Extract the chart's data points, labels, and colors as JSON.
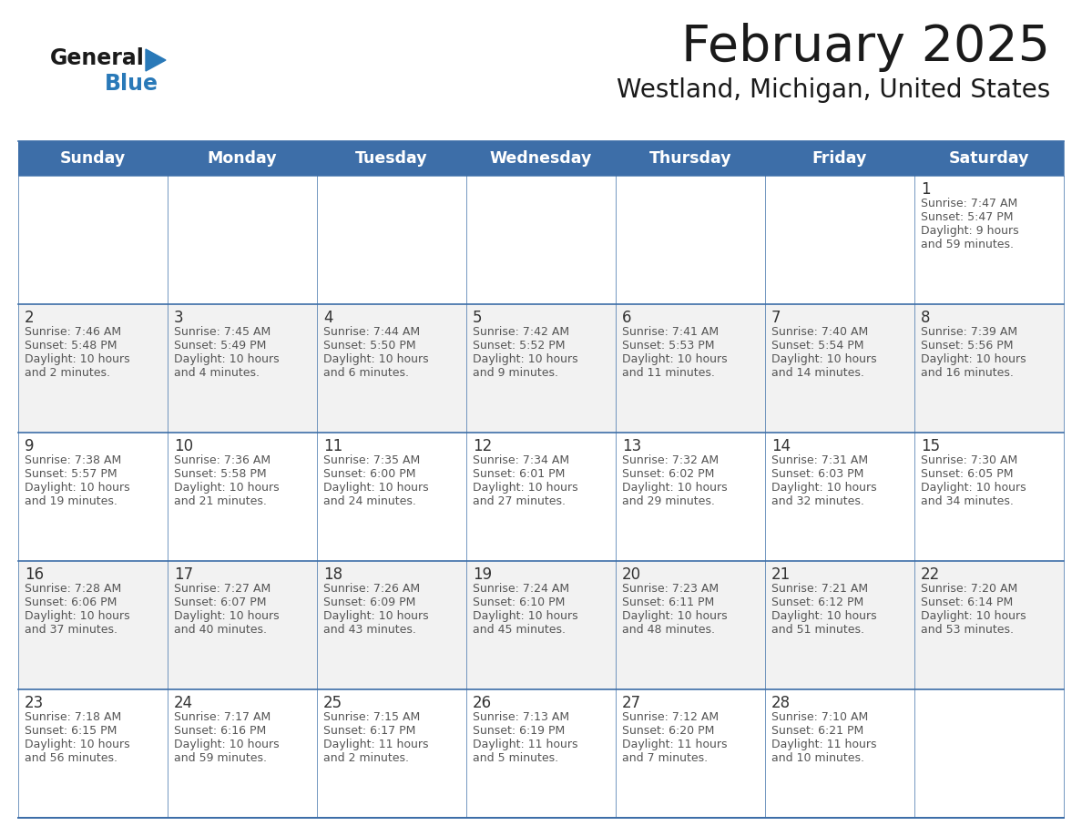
{
  "title": "February 2025",
  "subtitle": "Westland, Michigan, United States",
  "days_of_week": [
    "Sunday",
    "Monday",
    "Tuesday",
    "Wednesday",
    "Thursday",
    "Friday",
    "Saturday"
  ],
  "header_bg": "#3d6ea8",
  "header_text": "#ffffff",
  "row_bg": [
    "#ffffff",
    "#f2f2f2",
    "#ffffff",
    "#f2f2f2",
    "#ffffff",
    "#f2f2f2"
  ],
  "border_color": "#3d6ea8",
  "text_color": "#555555",
  "day_num_color": "#333333",
  "logo_general_color": "#1a1a1a",
  "logo_blue_color": "#2979b8",
  "calendar": [
    [
      null,
      null,
      null,
      null,
      null,
      null,
      {
        "day": 1,
        "sunrise": "7:47 AM",
        "sunset": "5:47 PM",
        "daylight_h": "9 hours",
        "daylight_m": "and 59 minutes."
      }
    ],
    [
      {
        "day": 2,
        "sunrise": "7:46 AM",
        "sunset": "5:48 PM",
        "daylight_h": "10 hours",
        "daylight_m": "and 2 minutes."
      },
      {
        "day": 3,
        "sunrise": "7:45 AM",
        "sunset": "5:49 PM",
        "daylight_h": "10 hours",
        "daylight_m": "and 4 minutes."
      },
      {
        "day": 4,
        "sunrise": "7:44 AM",
        "sunset": "5:50 PM",
        "daylight_h": "10 hours",
        "daylight_m": "and 6 minutes."
      },
      {
        "day": 5,
        "sunrise": "7:42 AM",
        "sunset": "5:52 PM",
        "daylight_h": "10 hours",
        "daylight_m": "and 9 minutes."
      },
      {
        "day": 6,
        "sunrise": "7:41 AM",
        "sunset": "5:53 PM",
        "daylight_h": "10 hours",
        "daylight_m": "and 11 minutes."
      },
      {
        "day": 7,
        "sunrise": "7:40 AM",
        "sunset": "5:54 PM",
        "daylight_h": "10 hours",
        "daylight_m": "and 14 minutes."
      },
      {
        "day": 8,
        "sunrise": "7:39 AM",
        "sunset": "5:56 PM",
        "daylight_h": "10 hours",
        "daylight_m": "and 16 minutes."
      }
    ],
    [
      {
        "day": 9,
        "sunrise": "7:38 AM",
        "sunset": "5:57 PM",
        "daylight_h": "10 hours",
        "daylight_m": "and 19 minutes."
      },
      {
        "day": 10,
        "sunrise": "7:36 AM",
        "sunset": "5:58 PM",
        "daylight_h": "10 hours",
        "daylight_m": "and 21 minutes."
      },
      {
        "day": 11,
        "sunrise": "7:35 AM",
        "sunset": "6:00 PM",
        "daylight_h": "10 hours",
        "daylight_m": "and 24 minutes."
      },
      {
        "day": 12,
        "sunrise": "7:34 AM",
        "sunset": "6:01 PM",
        "daylight_h": "10 hours",
        "daylight_m": "and 27 minutes."
      },
      {
        "day": 13,
        "sunrise": "7:32 AM",
        "sunset": "6:02 PM",
        "daylight_h": "10 hours",
        "daylight_m": "and 29 minutes."
      },
      {
        "day": 14,
        "sunrise": "7:31 AM",
        "sunset": "6:03 PM",
        "daylight_h": "10 hours",
        "daylight_m": "and 32 minutes."
      },
      {
        "day": 15,
        "sunrise": "7:30 AM",
        "sunset": "6:05 PM",
        "daylight_h": "10 hours",
        "daylight_m": "and 34 minutes."
      }
    ],
    [
      {
        "day": 16,
        "sunrise": "7:28 AM",
        "sunset": "6:06 PM",
        "daylight_h": "10 hours",
        "daylight_m": "and 37 minutes."
      },
      {
        "day": 17,
        "sunrise": "7:27 AM",
        "sunset": "6:07 PM",
        "daylight_h": "10 hours",
        "daylight_m": "and 40 minutes."
      },
      {
        "day": 18,
        "sunrise": "7:26 AM",
        "sunset": "6:09 PM",
        "daylight_h": "10 hours",
        "daylight_m": "and 43 minutes."
      },
      {
        "day": 19,
        "sunrise": "7:24 AM",
        "sunset": "6:10 PM",
        "daylight_h": "10 hours",
        "daylight_m": "and 45 minutes."
      },
      {
        "day": 20,
        "sunrise": "7:23 AM",
        "sunset": "6:11 PM",
        "daylight_h": "10 hours",
        "daylight_m": "and 48 minutes."
      },
      {
        "day": 21,
        "sunrise": "7:21 AM",
        "sunset": "6:12 PM",
        "daylight_h": "10 hours",
        "daylight_m": "and 51 minutes."
      },
      {
        "day": 22,
        "sunrise": "7:20 AM",
        "sunset": "6:14 PM",
        "daylight_h": "10 hours",
        "daylight_m": "and 53 minutes."
      }
    ],
    [
      {
        "day": 23,
        "sunrise": "7:18 AM",
        "sunset": "6:15 PM",
        "daylight_h": "10 hours",
        "daylight_m": "and 56 minutes."
      },
      {
        "day": 24,
        "sunrise": "7:17 AM",
        "sunset": "6:16 PM",
        "daylight_h": "10 hours",
        "daylight_m": "and 59 minutes."
      },
      {
        "day": 25,
        "sunrise": "7:15 AM",
        "sunset": "6:17 PM",
        "daylight_h": "11 hours",
        "daylight_m": "and 2 minutes."
      },
      {
        "day": 26,
        "sunrise": "7:13 AM",
        "sunset": "6:19 PM",
        "daylight_h": "11 hours",
        "daylight_m": "and 5 minutes."
      },
      {
        "day": 27,
        "sunrise": "7:12 AM",
        "sunset": "6:20 PM",
        "daylight_h": "11 hours",
        "daylight_m": "and 7 minutes."
      },
      {
        "day": 28,
        "sunrise": "7:10 AM",
        "sunset": "6:21 PM",
        "daylight_h": "11 hours",
        "daylight_m": "and 10 minutes."
      },
      null
    ]
  ]
}
